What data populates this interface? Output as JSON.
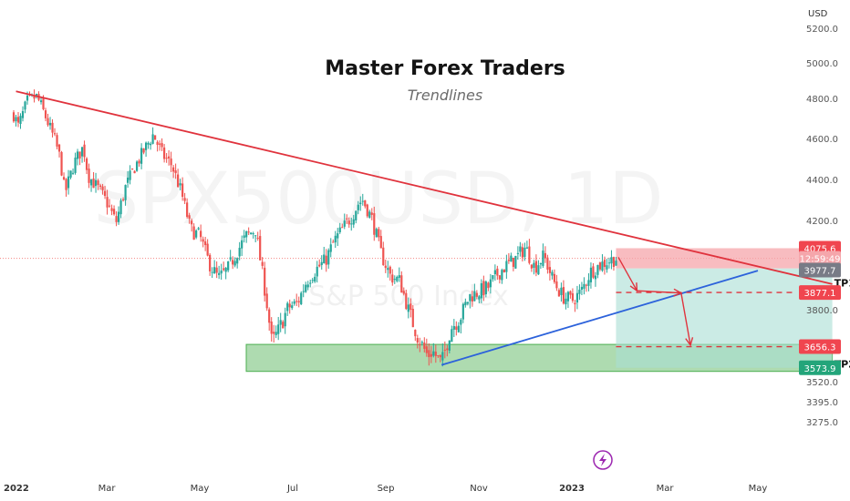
{
  "header": {
    "title": "Master Forex Traders",
    "subtitle": "Trendlines"
  },
  "watermark": {
    "symbol": "SPX500USD, 1D",
    "description": "S&P 500 Index"
  },
  "chart_data": {
    "type": "candlestick",
    "currency": "USD",
    "ylim": [
      3200,
      5300
    ],
    "y_ticks": [
      "5200.0",
      "5000.0",
      "4800.0",
      "4600.0",
      "4400.0",
      "4200.0",
      "3800.0",
      "3520.0",
      "3395.0",
      "3275.0"
    ],
    "y_tick_values": [
      5200,
      5000,
      4800,
      4600,
      4400,
      4200,
      3800,
      3520,
      3395,
      3275
    ],
    "x_ticks": [
      {
        "label": "2022",
        "month": 0,
        "bold": true
      },
      {
        "label": "Mar",
        "month": 2,
        "bold": false
      },
      {
        "label": "May",
        "month": 4,
        "bold": false
      },
      {
        "label": "Jul",
        "month": 6,
        "bold": false
      },
      {
        "label": "Sep",
        "month": 8,
        "bold": false
      },
      {
        "label": "Nov",
        "month": 10,
        "bold": false
      },
      {
        "label": "2023",
        "month": 12,
        "bold": true
      },
      {
        "label": "Mar",
        "month": 14,
        "bold": false
      },
      {
        "label": "May",
        "month": 16,
        "bold": false
      }
    ],
    "price_path": [
      [
        0.0,
        4720
      ],
      [
        0.1,
        4660
      ],
      [
        0.3,
        4790
      ],
      [
        0.5,
        4810
      ],
      [
        0.7,
        4700
      ],
      [
        0.9,
        4580
      ],
      [
        1.0,
        4500
      ],
      [
        1.1,
        4330
      ],
      [
        1.3,
        4480
      ],
      [
        1.5,
        4560
      ],
      [
        1.6,
        4420
      ],
      [
        1.8,
        4360
      ],
      [
        2.0,
        4290
      ],
      [
        2.2,
        4190
      ],
      [
        2.4,
        4360
      ],
      [
        2.6,
        4460
      ],
      [
        2.9,
        4580
      ],
      [
        3.0,
        4620
      ],
      [
        3.2,
        4520
      ],
      [
        3.4,
        4470
      ],
      [
        3.6,
        4340
      ],
      [
        3.8,
        4160
      ],
      [
        4.0,
        4130
      ],
      [
        4.2,
        4010
      ],
      [
        4.4,
        3940
      ],
      [
        4.6,
        3980
      ],
      [
        4.8,
        4060
      ],
      [
        5.0,
        4130
      ],
      [
        5.2,
        4160
      ],
      [
        5.4,
        3890
      ],
      [
        5.55,
        3670
      ],
      [
        5.7,
        3720
      ],
      [
        5.9,
        3810
      ],
      [
        6.1,
        3830
      ],
      [
        6.3,
        3930
      ],
      [
        6.5,
        3980
      ],
      [
        6.7,
        4020
      ],
      [
        6.9,
        4110
      ],
      [
        7.1,
        4170
      ],
      [
        7.3,
        4230
      ],
      [
        7.4,
        4280
      ],
      [
        7.5,
        4300
      ],
      [
        7.7,
        4210
      ],
      [
        7.9,
        4050
      ],
      [
        8.1,
        3950
      ],
      [
        8.3,
        3930
      ],
      [
        8.5,
        3790
      ],
      [
        8.7,
        3690
      ],
      [
        8.9,
        3620
      ],
      [
        9.0,
        3640
      ],
      [
        9.2,
        3590
      ],
      [
        9.4,
        3730
      ],
      [
        9.6,
        3770
      ],
      [
        9.8,
        3860
      ],
      [
        10.0,
        3880
      ],
      [
        10.2,
        3900
      ],
      [
        10.4,
        3960
      ],
      [
        10.6,
        4000
      ],
      [
        10.8,
        4030
      ],
      [
        11.0,
        4080
      ],
      [
        11.2,
        3990
      ],
      [
        11.4,
        4040
      ],
      [
        11.6,
        3930
      ],
      [
        11.8,
        3860
      ],
      [
        12.0,
        3840
      ],
      [
        12.2,
        3880
      ],
      [
        12.4,
        3970
      ],
      [
        12.6,
        4000
      ],
      [
        12.8,
        4020
      ],
      [
        12.95,
        4030
      ]
    ],
    "trendlines": {
      "resistance": {
        "from": {
          "month": 0.05,
          "price": 4840
        },
        "to": {
          "month": 17.6,
          "price": 3915
        },
        "color": "#e0333d"
      },
      "support": {
        "from": {
          "month": 9.2,
          "price": 3585
        },
        "to": {
          "month": 16.0,
          "price": 3975
        },
        "color": "#2c62db"
      }
    },
    "demand_zone": {
      "from_month": 5.0,
      "to_month": 17.6,
      "low": 3560,
      "high": 3665,
      "color": "#4caf50"
    },
    "position": {
      "from_month": 12.95,
      "to_month": 17.6,
      "entry": 3985,
      "stop": 4075.6,
      "target": 3573.9,
      "risk_color": "#f5a6ab",
      "reward_color": "#a8ddd4"
    },
    "targets": [
      {
        "label": "TP1",
        "price": 3877.1
      },
      {
        "label": "TP2",
        "price": 3656.3
      }
    ],
    "arrows": [
      {
        "from": {
          "month": 13.0,
          "price": 4035
        },
        "to": {
          "month": 13.4,
          "price": 3885
        }
      },
      {
        "from": {
          "month": 13.4,
          "price": 3885
        },
        "to": {
          "month": 14.35,
          "price": 3875
        }
      },
      {
        "from": {
          "month": 14.35,
          "price": 3875
        },
        "to": {
          "month": 14.55,
          "price": 3662
        }
      }
    ],
    "price_badges": [
      {
        "text": "4075.6",
        "price": 4075.6,
        "color": "#f0454f"
      },
      {
        "text": "12:59:49",
        "price": 4030,
        "color": "#f5a6ab"
      },
      {
        "text": "3977.7",
        "price": 3977.7,
        "color": "#787b86"
      },
      {
        "text": "3877.1",
        "price": 3877.1,
        "color": "#f0454f"
      },
      {
        "text": "3656.3",
        "price": 3656.3,
        "color": "#f0454f"
      },
      {
        "text": "3573.9",
        "price": 3573.9,
        "color": "#23a57a"
      }
    ],
    "last_price_line": 4030,
    "candle_colors": {
      "up": "#26a69a",
      "down": "#ef5350"
    }
  }
}
